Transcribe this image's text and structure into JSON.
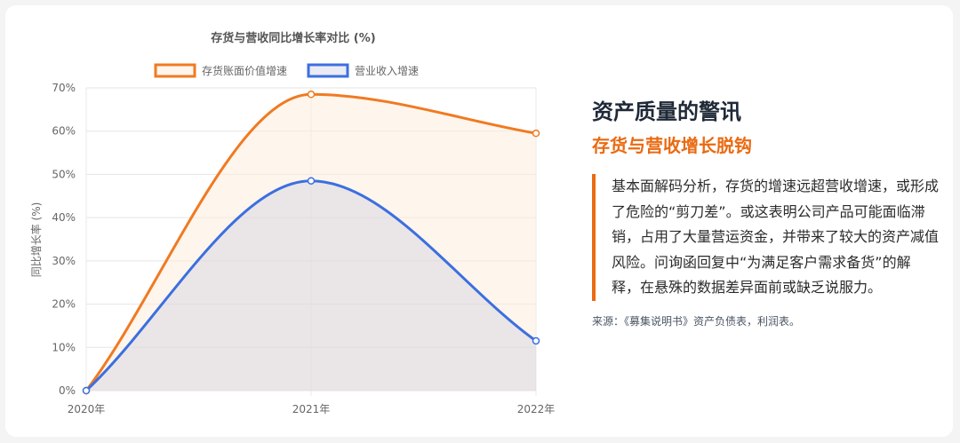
{
  "chart_data": {
    "type": "line",
    "title": "存货与营收同比增长率对比 (%)",
    "ylabel": "同比增长率 (%)",
    "xlabel": "",
    "categories": [
      "2020年",
      "2021年",
      "2022年"
    ],
    "ylim": [
      0,
      70
    ],
    "yticks": [
      "0%",
      "10%",
      "20%",
      "30%",
      "40%",
      "50%",
      "60%",
      "70%"
    ],
    "legend_position": "top",
    "grid": true,
    "series": [
      {
        "name": "存货账面价值增速",
        "values": [
          0,
          68.5,
          59.5
        ],
        "color": "#f07a22",
        "fill": "rgba(253,236,220,0.55)"
      },
      {
        "name": "营业收入增速",
        "values": [
          0,
          48.5,
          11.5
        ],
        "color": "#3b6fe0",
        "fill": "rgba(205,205,225,0.40)"
      }
    ]
  },
  "panel": {
    "title": "资产质量的警讯",
    "subtitle": "存货与营收增长脱钩",
    "body": "基本面解码分析，存货的增速远超营收增速，或形成了危险的“剪刀差”。或这表明公司产品可能面临滞销，占用了大量营运资金，并带来了较大的资产减值风险。问询函回复中“为满足客户需求备货”的解释，在悬殊的数据差异面前或缺乏说服力。",
    "source": "来源：《募集说明书》资产负债表，利润表。"
  }
}
